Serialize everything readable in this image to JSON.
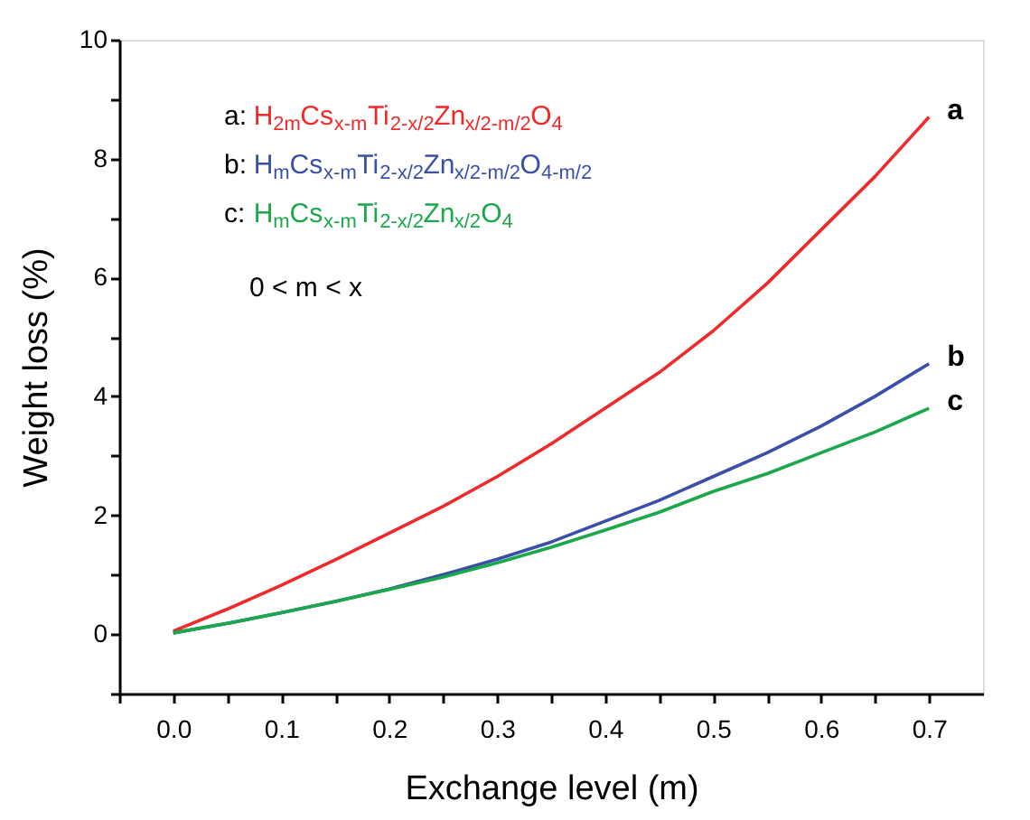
{
  "chart_data": {
    "type": "line",
    "xlabel": "Exchange level (m)",
    "ylabel": "Weight loss (%)",
    "x": [
      0.0,
      0.05,
      0.1,
      0.15,
      0.2,
      0.25,
      0.3,
      0.35,
      0.4,
      0.45,
      0.5,
      0.55,
      0.6,
      0.65,
      0.7
    ],
    "series": [
      {
        "name": "a",
        "color": "#ee2a2a",
        "values": [
          0.05,
          0.42,
          0.82,
          1.25,
          1.7,
          2.15,
          2.65,
          3.2,
          3.8,
          4.4,
          5.1,
          5.9,
          6.8,
          7.7,
          8.7
        ]
      },
      {
        "name": "b",
        "color": "#3a4fa8",
        "values": [
          0.02,
          0.18,
          0.36,
          0.55,
          0.76,
          1.0,
          1.26,
          1.55,
          1.9,
          2.25,
          2.65,
          3.05,
          3.5,
          4.0,
          4.55
        ]
      },
      {
        "name": "c",
        "color": "#1aa84a",
        "values": [
          0.02,
          0.18,
          0.36,
          0.55,
          0.75,
          0.96,
          1.2,
          1.46,
          1.75,
          2.05,
          2.4,
          2.7,
          3.05,
          3.4,
          3.8
        ]
      }
    ],
    "annotations": [
      "a: H$_{2m}$Cs$_{x-m}$Ti$_{2-x/2}$Zn$_{x/2-m/2}$O$_{4}$",
      "b: H$_{m}$Cs$_{x-m}$Ti$_{2-x/2}$Zn$_{x/2-m/2}$O$_{4-m/2}$",
      "c: H$_{m}$Cs$_{x-m}$Ti$_{2-x/2}$Zn$_{x/2}$O$_{4}$",
      "0 < m < x"
    ],
    "xlim": [
      -0.05,
      0.75
    ],
    "xticks": [
      {
        "value": -0.05,
        "label": null
      },
      {
        "value": 0,
        "label": "0.0"
      },
      {
        "value": 0.05,
        "label": null
      },
      0.1,
      {
        "value": 0.15,
        "label": null
      },
      0.2,
      {
        "value": 0.25,
        "label": null
      },
      0.3,
      {
        "value": 0.35,
        "label": null
      },
      0.4,
      {
        "value": 0.45,
        "label": null
      },
      0.5,
      {
        "value": 0.55,
        "label": null
      },
      0.6,
      {
        "value": 0.65,
        "label": null
      },
      0.7
    ],
    "ylim": [
      -1,
      10
    ],
    "yticks": [
      {
        "value": -1,
        "label": null
      },
      0,
      {
        "value": 1,
        "label": null
      },
      2,
      {
        "value": 3,
        "label": null
      },
      4,
      {
        "value": 5,
        "label": null
      },
      6,
      {
        "value": 7,
        "label": null
      },
      8,
      {
        "value": 9,
        "label": null
      },
      10
    ],
    "grid": false,
    "legend": false,
    "marker": "none",
    "line_style": "solid"
  }
}
